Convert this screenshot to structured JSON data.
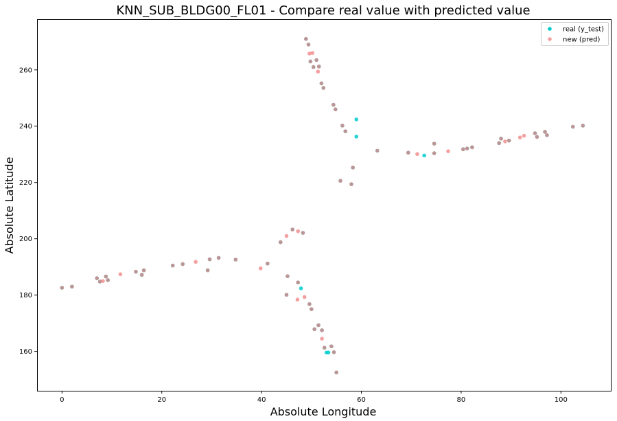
{
  "chart_data": {
    "type": "scatter",
    "title": "KNN_SUB_BLDG00_FL01 - Compare real value with predicted value",
    "xlabel": "Absolute Longitude",
    "ylabel": "Absolute Latitude",
    "xlim": [
      -5,
      110
    ],
    "ylim": [
      146,
      278
    ],
    "xticks": [
      0,
      20,
      40,
      60,
      80,
      100
    ],
    "yticks": [
      160,
      180,
      200,
      220,
      240,
      260
    ],
    "grid": false,
    "legend_position": "top-right",
    "series": [
      {
        "name": "real (y_test)",
        "color": "#00cccc",
        "points": [
          [
            0.0,
            182.6
          ],
          [
            2.0,
            183.0
          ],
          [
            7.0,
            186.0
          ],
          [
            8.8,
            186.6
          ],
          [
            9.2,
            185.3
          ],
          [
            7.6,
            184.8
          ],
          [
            14.8,
            188.3
          ],
          [
            16.0,
            187.2
          ],
          [
            16.4,
            188.8
          ],
          [
            22.2,
            190.5
          ],
          [
            24.2,
            191.0
          ],
          [
            29.2,
            188.8
          ],
          [
            29.6,
            192.7
          ],
          [
            31.4,
            193.2
          ],
          [
            34.8,
            192.6
          ],
          [
            41.2,
            191.2
          ],
          [
            43.8,
            198.8
          ],
          [
            46.2,
            203.3
          ],
          [
            48.3,
            202.1
          ],
          [
            45.2,
            186.7
          ],
          [
            47.3,
            184.5
          ],
          [
            47.9,
            182.4
          ],
          [
            45.0,
            180.1
          ],
          [
            49.6,
            176.8
          ],
          [
            50.0,
            175.0
          ],
          [
            50.6,
            167.9
          ],
          [
            51.4,
            169.3
          ],
          [
            52.1,
            167.5
          ],
          [
            52.6,
            161.3
          ],
          [
            53.0,
            159.6
          ],
          [
            53.4,
            159.6
          ],
          [
            54.0,
            161.8
          ],
          [
            54.5,
            159.7
          ],
          [
            55.0,
            152.5
          ],
          [
            48.9,
            271.0
          ],
          [
            49.4,
            269.0
          ],
          [
            49.8,
            263.0
          ],
          [
            50.4,
            261.0
          ],
          [
            51.0,
            263.5
          ],
          [
            51.5,
            261.2
          ],
          [
            52.0,
            255.2
          ],
          [
            52.4,
            253.6
          ],
          [
            54.4,
            247.6
          ],
          [
            54.8,
            246.0
          ],
          [
            56.2,
            240.2
          ],
          [
            56.8,
            238.2
          ],
          [
            59.0,
            242.4
          ],
          [
            59.0,
            236.3
          ],
          [
            58.3,
            225.3
          ],
          [
            55.8,
            220.6
          ],
          [
            58.0,
            219.4
          ],
          [
            63.2,
            231.3
          ],
          [
            69.4,
            230.6
          ],
          [
            72.6,
            229.6
          ],
          [
            74.6,
            233.8
          ],
          [
            74.6,
            230.4
          ],
          [
            80.4,
            231.8
          ],
          [
            81.2,
            232.1
          ],
          [
            82.2,
            232.5
          ],
          [
            87.6,
            234.0
          ],
          [
            88.0,
            235.6
          ],
          [
            89.6,
            234.9
          ],
          [
            94.8,
            237.5
          ],
          [
            95.2,
            236.2
          ],
          [
            96.8,
            238.0
          ],
          [
            97.2,
            236.8
          ],
          [
            102.4,
            239.8
          ],
          [
            104.4,
            240.2
          ]
        ]
      },
      {
        "name": "new (pred)",
        "color": "#f08080",
        "points": [
          [
            0.0,
            182.6
          ],
          [
            2.0,
            183.0
          ],
          [
            7.0,
            186.0
          ],
          [
            8.2,
            185.0
          ],
          [
            8.8,
            186.6
          ],
          [
            9.2,
            185.3
          ],
          [
            7.6,
            184.8
          ],
          [
            11.7,
            187.4
          ],
          [
            14.8,
            188.3
          ],
          [
            16.0,
            187.2
          ],
          [
            16.4,
            188.8
          ],
          [
            22.2,
            190.5
          ],
          [
            24.2,
            191.0
          ],
          [
            26.8,
            191.8
          ],
          [
            29.2,
            188.8
          ],
          [
            29.6,
            192.7
          ],
          [
            31.4,
            193.2
          ],
          [
            34.8,
            192.6
          ],
          [
            39.8,
            189.5
          ],
          [
            41.2,
            191.2
          ],
          [
            43.8,
            198.8
          ],
          [
            45.0,
            201.0
          ],
          [
            46.2,
            203.3
          ],
          [
            47.3,
            202.7
          ],
          [
            48.3,
            202.1
          ],
          [
            45.2,
            186.7
          ],
          [
            47.3,
            184.5
          ],
          [
            47.2,
            178.4
          ],
          [
            48.6,
            179.3
          ],
          [
            45.0,
            180.1
          ],
          [
            49.6,
            176.8
          ],
          [
            50.0,
            175.0
          ],
          [
            50.6,
            167.9
          ],
          [
            51.4,
            169.3
          ],
          [
            52.1,
            167.5
          ],
          [
            52.1,
            164.5
          ],
          [
            52.6,
            161.3
          ],
          [
            54.0,
            161.8
          ],
          [
            54.5,
            159.7
          ],
          [
            55.0,
            152.5
          ],
          [
            48.9,
            271.0
          ],
          [
            49.4,
            269.0
          ],
          [
            49.6,
            265.8
          ],
          [
            50.2,
            266.0
          ],
          [
            49.8,
            263.0
          ],
          [
            50.4,
            261.0
          ],
          [
            51.0,
            263.5
          ],
          [
            51.3,
            259.4
          ],
          [
            51.5,
            261.2
          ],
          [
            52.0,
            255.2
          ],
          [
            52.4,
            253.6
          ],
          [
            54.4,
            247.6
          ],
          [
            54.8,
            246.0
          ],
          [
            56.2,
            240.2
          ],
          [
            56.8,
            238.2
          ],
          [
            58.3,
            225.3
          ],
          [
            55.8,
            220.6
          ],
          [
            58.0,
            219.4
          ],
          [
            63.2,
            231.3
          ],
          [
            69.4,
            230.6
          ],
          [
            71.2,
            230.1
          ],
          [
            74.6,
            233.8
          ],
          [
            74.6,
            230.4
          ],
          [
            77.4,
            231.1
          ],
          [
            80.4,
            231.8
          ],
          [
            81.2,
            232.1
          ],
          [
            82.2,
            232.5
          ],
          [
            87.6,
            234.0
          ],
          [
            88.0,
            235.6
          ],
          [
            88.8,
            234.6
          ],
          [
            89.6,
            234.9
          ],
          [
            91.8,
            236.0
          ],
          [
            92.6,
            236.6
          ],
          [
            94.8,
            237.5
          ],
          [
            95.2,
            236.2
          ],
          [
            96.8,
            238.0
          ],
          [
            97.2,
            236.8
          ],
          [
            102.4,
            239.8
          ],
          [
            104.4,
            240.2
          ]
        ]
      }
    ]
  }
}
